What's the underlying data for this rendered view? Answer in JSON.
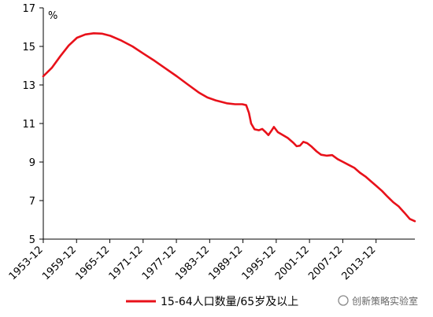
{
  "chart_data": {
    "type": "line",
    "title": "",
    "xlabel": "",
    "ylabel": "%",
    "ylim": [
      5,
      17
    ],
    "y_ticks": [
      5,
      7,
      9,
      11,
      13,
      15,
      17
    ],
    "x_ticks": [
      "1953-12",
      "1959-12",
      "1965-12",
      "1971-12",
      "1977-12",
      "1983-12",
      "1989-12",
      "1995-12",
      "2001-12",
      "2007-12",
      "2013-12"
    ],
    "x_range": [
      1953.92,
      2020.92
    ],
    "grid": false,
    "legend_position": "bottom-center",
    "series": [
      {
        "name": "15-64人口数量/65岁及以上",
        "color": "#e8111a",
        "points": [
          [
            1953.9,
            13.45
          ],
          [
            1955.5,
            13.9
          ],
          [
            1957.0,
            14.5
          ],
          [
            1958.5,
            15.05
          ],
          [
            1960.0,
            15.45
          ],
          [
            1961.5,
            15.62
          ],
          [
            1963.0,
            15.68
          ],
          [
            1964.5,
            15.66
          ],
          [
            1966.0,
            15.55
          ],
          [
            1968.0,
            15.3
          ],
          [
            1970.0,
            15.0
          ],
          [
            1972.0,
            14.62
          ],
          [
            1974.0,
            14.25
          ],
          [
            1976.0,
            13.85
          ],
          [
            1978.0,
            13.45
          ],
          [
            1980.0,
            13.02
          ],
          [
            1982.0,
            12.6
          ],
          [
            1983.5,
            12.35
          ],
          [
            1985.0,
            12.2
          ],
          [
            1987.0,
            12.05
          ],
          [
            1988.5,
            12.0
          ],
          [
            1989.8,
            12.0
          ],
          [
            1990.5,
            11.95
          ],
          [
            1991.0,
            11.55
          ],
          [
            1991.4,
            11.0
          ],
          [
            1992.0,
            10.7
          ],
          [
            1992.8,
            10.65
          ],
          [
            1993.4,
            10.72
          ],
          [
            1994.0,
            10.55
          ],
          [
            1994.5,
            10.4
          ],
          [
            1995.0,
            10.6
          ],
          [
            1995.5,
            10.82
          ],
          [
            1996.2,
            10.55
          ],
          [
            1997.0,
            10.42
          ],
          [
            1998.0,
            10.25
          ],
          [
            1999.0,
            10.0
          ],
          [
            1999.6,
            9.82
          ],
          [
            2000.2,
            9.85
          ],
          [
            2000.8,
            10.05
          ],
          [
            2001.5,
            9.98
          ],
          [
            2002.3,
            9.8
          ],
          [
            2003.2,
            9.55
          ],
          [
            2004.0,
            9.38
          ],
          [
            2005.0,
            9.33
          ],
          [
            2006.0,
            9.36
          ],
          [
            2007.0,
            9.15
          ],
          [
            2008.0,
            9.0
          ],
          [
            2009.0,
            8.85
          ],
          [
            2010.0,
            8.7
          ],
          [
            2011.0,
            8.45
          ],
          [
            2012.0,
            8.25
          ],
          [
            2013.0,
            8.0
          ],
          [
            2014.0,
            7.75
          ],
          [
            2015.0,
            7.5
          ],
          [
            2016.0,
            7.2
          ],
          [
            2017.0,
            6.92
          ],
          [
            2018.0,
            6.7
          ],
          [
            2019.0,
            6.38
          ],
          [
            2020.0,
            6.05
          ],
          [
            2020.9,
            5.93
          ]
        ]
      }
    ]
  },
  "watermark": {
    "text": "创新策略实验室"
  }
}
